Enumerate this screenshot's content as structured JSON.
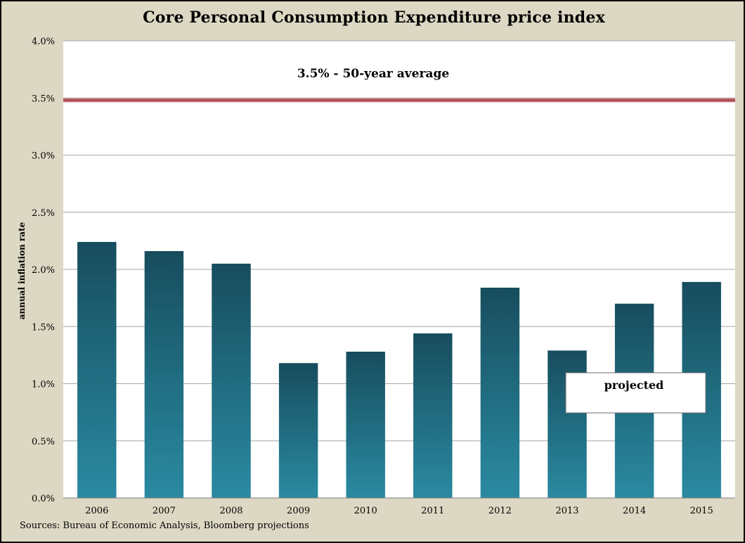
{
  "title": "Core Personal Consumption Expenditure price index",
  "source": "Sources: Bureau of Economic Analysis, Bloomberg projections",
  "chart_data": {
    "type": "bar",
    "title": "Core Personal Consumption Expenditure price index",
    "xlabel": "",
    "ylabel": "annual inflation rate",
    "categories": [
      "2006",
      "2007",
      "2008",
      "2009",
      "2010",
      "2011",
      "2012",
      "2013",
      "2014",
      "2015"
    ],
    "values": [
      2.24,
      2.16,
      2.05,
      1.18,
      1.28,
      1.44,
      1.84,
      1.29,
      1.7,
      1.89
    ],
    "ylim": [
      0,
      4.0
    ],
    "yticks": [
      0,
      0.5,
      1.0,
      1.5,
      2.0,
      2.5,
      3.0,
      3.5,
      4.0
    ],
    "ytick_labels": [
      "0.0%",
      "0.5%",
      "1.0%",
      "1.5%",
      "2.0%",
      "2.5%",
      "3.0%",
      "3.5%",
      "4.0%"
    ],
    "grid": true,
    "reference_line": {
      "value": 3.48,
      "label": "3.5% - 50-year average",
      "color": "#a8323a"
    },
    "annotation": {
      "text": "projected"
    },
    "colors": {
      "bar_top": "#174d5e",
      "bar_bottom": "#2a8aa1",
      "background": "#ddd8c4",
      "plot_background": "#ffffff",
      "grid": "#a6a6a6"
    }
  }
}
